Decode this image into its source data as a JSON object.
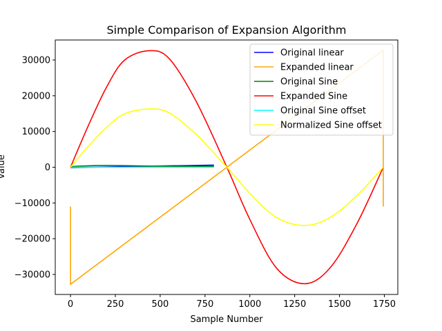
{
  "chart_data": {
    "type": "line",
    "title": "Simple Comparison of Expansion Algorithm",
    "xlabel": "Sample Number",
    "ylabel": "Value",
    "xlim": [
      -85,
      1825
    ],
    "ylim": [
      -35600,
      35600
    ],
    "xticks": [
      0,
      250,
      500,
      750,
      1000,
      1250,
      1500,
      1750
    ],
    "yticks": [
      -30000,
      -20000,
      -10000,
      0,
      10000,
      20000,
      30000
    ],
    "grid": false,
    "legend_position": "top-right",
    "series": [
      {
        "name": "Original linear",
        "color": "#0000ff",
        "x": [
          0,
          800
        ],
        "y": [
          -100,
          600
        ]
      },
      {
        "name": "Expanded linear",
        "color": "#ffa500",
        "x": [
          0,
          0,
          1744,
          1744
        ],
        "y": [
          -11000,
          -32768,
          32767,
          -11000
        ]
      },
      {
        "name": "Original Sine",
        "color": "#008000",
        "x": [
          0,
          100,
          200,
          300,
          400,
          500,
          600,
          700,
          800
        ],
        "y": [
          200,
          400,
          500,
          450,
          350,
          300,
          250,
          250,
          250
        ]
      },
      {
        "name": "Expanded Sine",
        "color": "#ff0000",
        "x": [
          0,
          100,
          200,
          300,
          436,
          550,
          700,
          872,
          1000,
          1150,
          1308,
          1450,
          1600,
          1744
        ],
        "y": [
          0,
          11700,
          22300,
          29900,
          32600,
          30400,
          18500,
          0,
          -14600,
          -28300,
          -32600,
          -28000,
          -15500,
          0
        ]
      },
      {
        "name": "Original Sine offset",
        "color": "#00ffff",
        "x": [
          0,
          800
        ],
        "y": [
          0,
          0
        ]
      },
      {
        "name": "Normalized Sine offset",
        "color": "#ffff00",
        "x": [
          0,
          100,
          200,
          300,
          436,
          550,
          700,
          872,
          1000,
          1150,
          1308,
          1450,
          1600,
          1744
        ],
        "y": [
          0,
          5900,
          11100,
          14900,
          16300,
          15200,
          9200,
          0,
          -7300,
          -14100,
          -16300,
          -14000,
          -7800,
          0
        ]
      }
    ]
  }
}
